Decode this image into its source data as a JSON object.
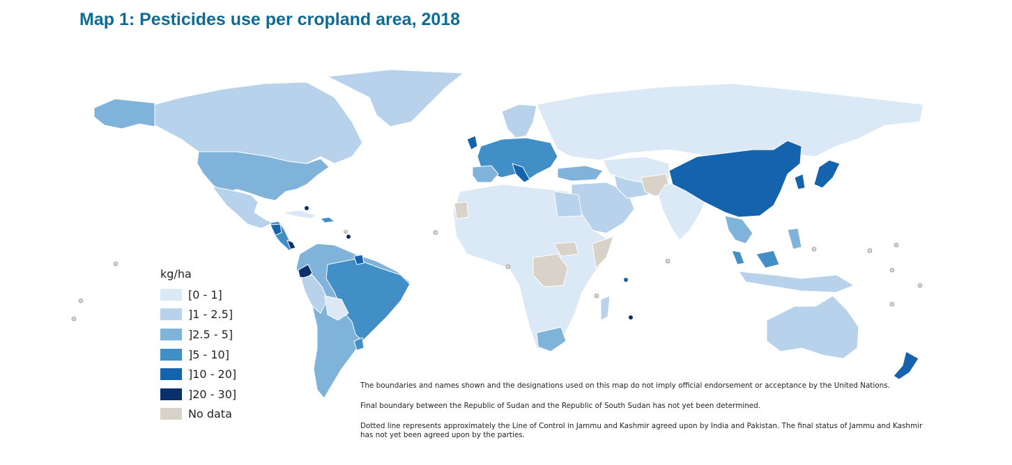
{
  "title": "Map 1: Pesticides use per cropland area, 2018",
  "legend": {
    "title": "kg/ha",
    "items": [
      {
        "label": "[0 - 1]",
        "color": "#dbe8f5"
      },
      {
        "label": "]1 - 2.5]",
        "color": "#b7d2ea"
      },
      {
        "label": "]2.5 - 5]",
        "color": "#7fb3da"
      },
      {
        "label": "]5 - 10]",
        "color": "#428fc8"
      },
      {
        "label": "]10 - 20]",
        "color": "#1563ad"
      },
      {
        "label": "]20 - 30]",
        "color": "#0a2f6b"
      },
      {
        "label": "No data",
        "color": "#d8d2c9"
      }
    ]
  },
  "notes": [
    "The boundaries and names shown and the designations used on this map do not imply official endorsement or acceptance by the United Nations.",
    "Final boundary between the Republic of Sudan and the Republic of South Sudan has not yet been determined.",
    "Dotted line represents approximately the Line of Control in Jammu and Kashmir agreed upon by India and Pakistan. The final status of Jammu and Kashmir has not yet been agreed upon by the parties."
  ]
}
